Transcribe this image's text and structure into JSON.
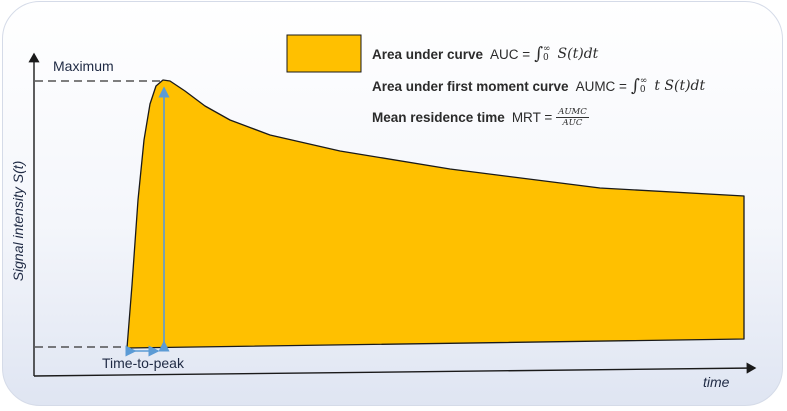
{
  "axes": {
    "y_label": "Signal intensity S(t)",
    "x_label": "time"
  },
  "annotations": {
    "maximum": "Maximum",
    "time_to_peak": "Time-to-peak"
  },
  "legend": {
    "auc_title": "Area under curve",
    "auc_abbrev": "AUC =",
    "auc_integrand": "S(t)dt",
    "aumc_title": "Area under first moment curve",
    "aumc_abbrev": "AUMC =",
    "aumc_integrand": "t S(t)dt",
    "mrt_title": "Mean residence time",
    "mrt_abbrev": "MRT =",
    "mrt_numerator": "AUMC",
    "mrt_denominator": "AUC",
    "int_upper": "∞",
    "int_lower": "0",
    "int_symbol": "∫"
  },
  "colors": {
    "fill": "#FFC000",
    "outline": "#1a1a1a",
    "arrow": "#5B9BD5",
    "text": "#1f2a44"
  }
}
